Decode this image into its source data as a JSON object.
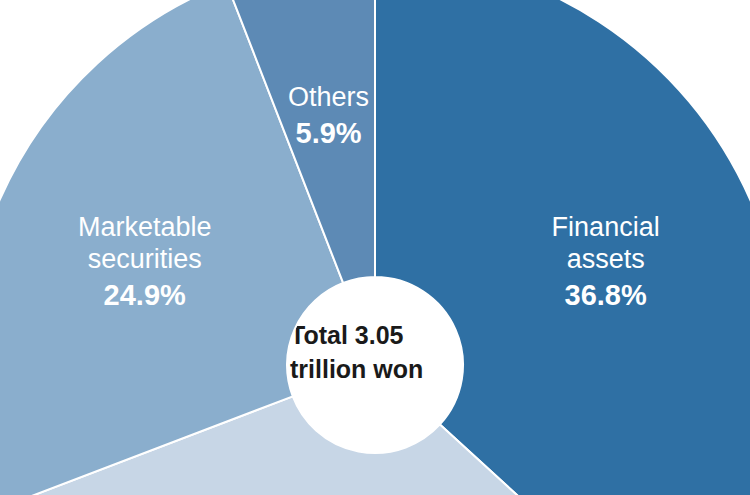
{
  "chart_data": {
    "type": "pie",
    "categories": [
      "Financial assets",
      null,
      "Marketable securities",
      "Others"
    ],
    "values": [
      36.8,
      32.4,
      24.9,
      5.9
    ],
    "value_labels": [
      "36.8%",
      null,
      "24.9%",
      "5.9%"
    ],
    "colors": [
      "#2f70a4",
      "#c7d6e6",
      "#8aaecd",
      "#5d8ab5"
    ],
    "data_labels": true,
    "annotations": [
      "Total 3.05 trillion won"
    ]
  }
}
